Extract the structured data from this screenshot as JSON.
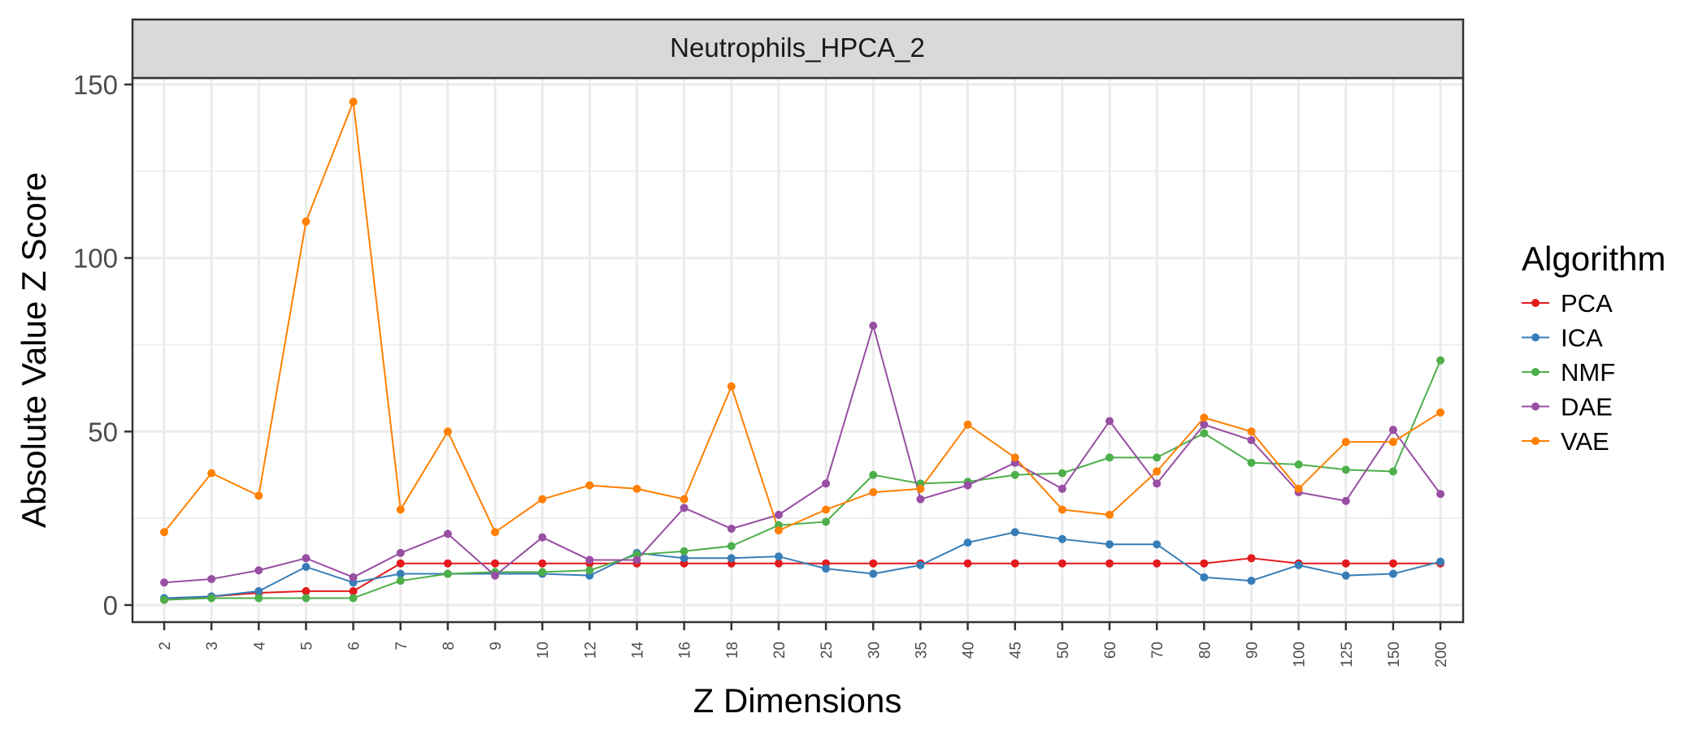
{
  "chart_data": {
    "type": "line",
    "title": "",
    "facet_label": "Neutrophils_HPCA_2",
    "xlabel": "Z Dimensions",
    "ylabel": "Absolute Value Z Score",
    "x_type": "categorical",
    "categories": [
      "2",
      "3",
      "4",
      "5",
      "6",
      "7",
      "8",
      "9",
      "10",
      "12",
      "14",
      "16",
      "18",
      "20",
      "25",
      "30",
      "35",
      "40",
      "45",
      "50",
      "60",
      "70",
      "80",
      "90",
      "100",
      "125",
      "150",
      "200"
    ],
    "ylim": [
      -5,
      150
    ],
    "yticks": [
      0,
      50,
      100,
      150
    ],
    "grid": true,
    "legend": {
      "title": "Algorithm",
      "position": "right"
    },
    "series": [
      {
        "name": "PCA",
        "color": "#e41a1c",
        "values": [
          1.5,
          2.5,
          3.5,
          4,
          4,
          12,
          12,
          12,
          12,
          12,
          12,
          12,
          12,
          12,
          12,
          12,
          12,
          12,
          12,
          12,
          12,
          12,
          12,
          13.5,
          12,
          12,
          12,
          12
        ]
      },
      {
        "name": "ICA",
        "color": "#377eb8",
        "values": [
          2,
          2.5,
          4,
          11,
          6.5,
          9,
          9,
          9,
          9,
          8.5,
          15,
          13.5,
          13.5,
          14,
          10.5,
          9,
          11.5,
          18,
          21,
          19,
          17.5,
          17.5,
          8,
          7,
          11.5,
          8.5,
          9,
          12.5
        ]
      },
      {
        "name": "NMF",
        "color": "#4daf4a",
        "values": [
          1.5,
          2,
          2,
          2,
          2,
          7,
          9,
          9.5,
          9.5,
          10,
          14.5,
          15.5,
          17,
          23,
          24,
          37.5,
          35,
          35.5,
          37.5,
          38,
          42.5,
          42.5,
          49.5,
          41,
          40.5,
          39,
          38.5,
          70.5
        ]
      },
      {
        "name": "DAE",
        "color": "#984ea3",
        "values": [
          6.5,
          7.5,
          10,
          13.5,
          8,
          15,
          20.5,
          8.5,
          19.5,
          13,
          13,
          28,
          22,
          26,
          35,
          80.5,
          30.5,
          34.5,
          41,
          33.5,
          53,
          35,
          52,
          47.5,
          32.5,
          30,
          50.5,
          32
        ]
      },
      {
        "name": "VAE",
        "color": "#ff7f00",
        "values": [
          21,
          38,
          31.5,
          110.5,
          145,
          27.5,
          50,
          21,
          30.5,
          34.5,
          33.5,
          30.5,
          63,
          21.5,
          27.5,
          32.5,
          33.5,
          52,
          42.5,
          27.5,
          26,
          38.5,
          54,
          50,
          33.5,
          47,
          47,
          55.5
        ]
      }
    ]
  }
}
